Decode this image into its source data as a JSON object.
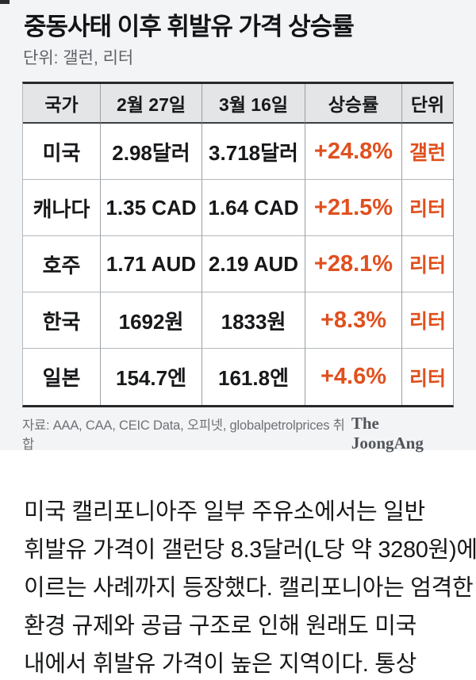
{
  "page": {
    "title": "중동사태 이후 휘발유 가격 상승률",
    "subtitle": "단위: 갤런, 리터"
  },
  "colors": {
    "accent_orange": "#e0501e",
    "header_bg": "#e3e5e6",
    "panel_bg": "#f3f4f5",
    "border_dark": "#26282a"
  },
  "chart_data": {
    "type": "table",
    "title": "중동사태 이후 휘발유 가격 상승률",
    "subtitle": "단위: 갤런, 리터",
    "columns": [
      "국가",
      "2월 27일",
      "3월 16일",
      "상승률",
      "단위"
    ],
    "rows": [
      [
        "미국",
        "2.98달러",
        "3.718달러",
        "+24.8%",
        "갤런"
      ],
      [
        "캐나다",
        "1.35 CAD",
        "1.64 CAD",
        "+21.5%",
        "리터"
      ],
      [
        "호주",
        "1.71 AUD",
        "2.19 AUD",
        "+28.1%",
        "리터"
      ],
      [
        "한국",
        "1692원",
        "1833원",
        "+8.3%",
        "리터"
      ],
      [
        "일본",
        "154.7엔",
        "161.8엔",
        "+4.6%",
        "리터"
      ]
    ],
    "change_values_pct": [
      24.8,
      21.5,
      28.1,
      8.3,
      4.6
    ],
    "source": "자료: AAA, CAA, CEIC Data, 오피넷, globalpetrolprices 취합"
  },
  "table": {
    "headers": [
      "국가",
      "2월 27일",
      "3월 16일",
      "상승률",
      "단위"
    ],
    "rows": [
      {
        "country": "미국",
        "feb27": "2.98달러",
        "mar16": "3.718달러",
        "change": "+24.8%",
        "unit": "갤런"
      },
      {
        "country": "캐나다",
        "feb27": "1.35 CAD",
        "mar16": "1.64 CAD",
        "change": "+21.5%",
        "unit": "리터"
      },
      {
        "country": "호주",
        "feb27": "1.71 AUD",
        "mar16": "2.19 AUD",
        "change": "+28.1%",
        "unit": "리터"
      },
      {
        "country": "한국",
        "feb27": "1692원",
        "mar16": "1833원",
        "change": "+8.3%",
        "unit": "리터"
      },
      {
        "country": "일본",
        "feb27": "154.7엔",
        "mar16": "161.8엔",
        "change": "+4.6%",
        "unit": "리터"
      }
    ]
  },
  "source": {
    "credit": "자료: AAA, CAA, CEIC Data, 오피넷, globalpetrolprices 취합",
    "publisher": "The JoongAng"
  },
  "article": {
    "lines": [
      "미국 캘리포니아주 일부 주유소에서는 일반",
      "휘발유 가격이 갤런당 8.3달러(L당 약 3280원)에",
      "이르는 사례까지 등장했다. 캘리포니아는 엄격한",
      "환경 규제와 공급 구조로 인해 원래도 미국",
      "내에서 휘발유 가격이 높은 지역이다. 통상"
    ]
  }
}
